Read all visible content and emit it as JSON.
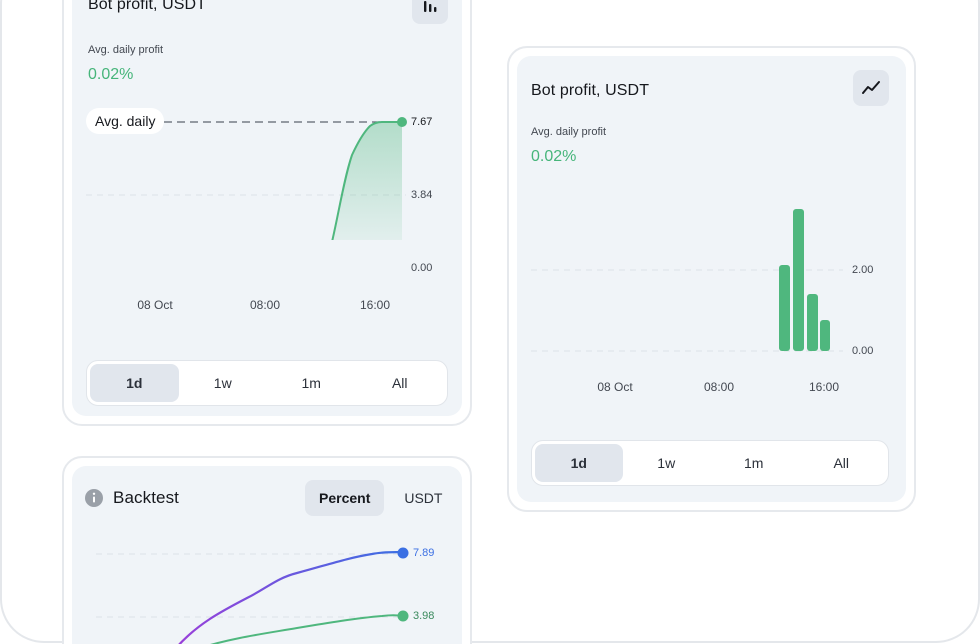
{
  "card_left": {
    "title": "Bot profit, USDT",
    "stat_label": "Avg. daily profit",
    "stat_value": "0.02%",
    "avg_pill": "Avg. daily",
    "y_ticks": [
      "7.67",
      "3.84",
      "0.00"
    ],
    "x_ticks": [
      "08 Oct",
      "08:00",
      "16:00"
    ],
    "periods": [
      "1d",
      "1w",
      "1m",
      "All"
    ],
    "active_period": "1d",
    "chart_icon": "bar-chart-icon"
  },
  "card_right": {
    "title": "Bot profit, USDT",
    "stat_label": "Avg. daily profit",
    "stat_value": "0.02%",
    "y_ticks": [
      "2.00",
      "0.00"
    ],
    "x_ticks": [
      "08 Oct",
      "08:00",
      "16:00"
    ],
    "periods": [
      "1d",
      "1w",
      "1m",
      "All"
    ],
    "active_period": "1d",
    "chart_icon": "line-chart-icon"
  },
  "backtest": {
    "title": "Backtest",
    "info_icon": "info-icon",
    "toggle": [
      "Percent",
      "USDT"
    ],
    "active_toggle": "Percent",
    "end_labels": [
      "7.89",
      "3.98"
    ]
  },
  "colors": {
    "green": "#4fb77e",
    "blue": "#3b6fe3",
    "purple": "#8b4fe0",
    "card_bg": "#f0f4f8"
  }
}
